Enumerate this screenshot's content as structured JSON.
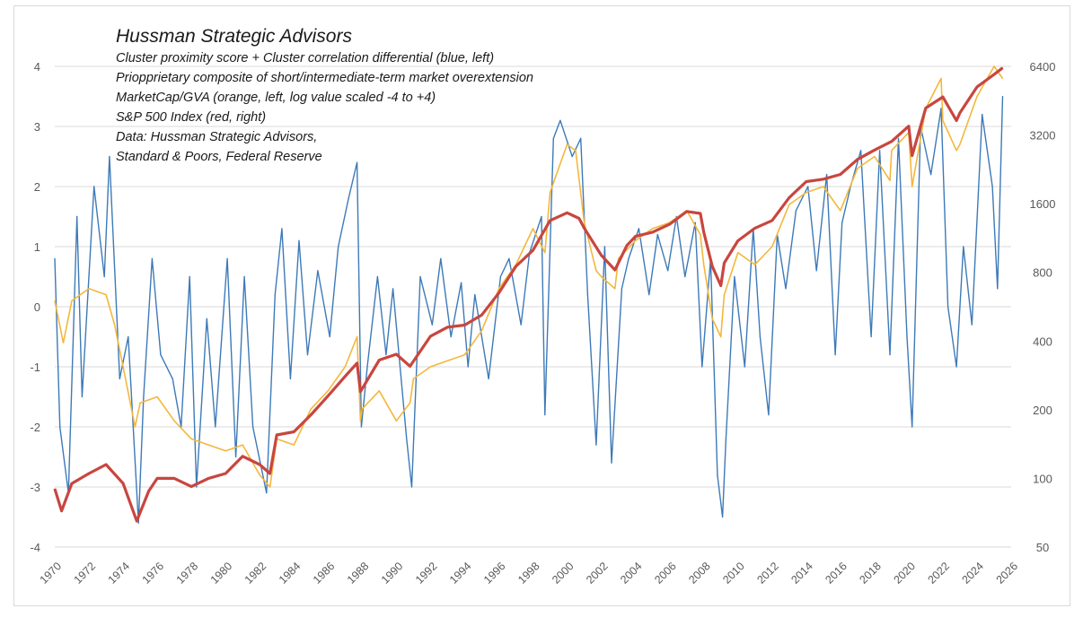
{
  "colors": {
    "cluster": "#3d7ab8",
    "marketcap": "#f4b73c",
    "sp500": "#c8463f",
    "grid": "#d9d9d9",
    "tick_text": "#595959"
  },
  "annotations": {
    "title": "Hussman Strategic Advisors",
    "lines": [
      "Cluster proximity score + Cluster correlation differential (blue, left)",
      "Priopprietary composite of short/intermediate-term  market overextension",
      "MarketCap/GVA (orange, left, log value scaled -4 to +4)",
      "S&P 500 Index (red, right)",
      "Data: Hussman Strategic Advisors,",
      "Standard & Poors, Federal Reserve"
    ]
  },
  "chart_data": {
    "type": "line",
    "title": "Hussman Strategic Advisors",
    "grid": "horizontal",
    "xlim": [
      1970,
      2026
    ],
    "x_ticks": [
      "1970",
      "1972",
      "1974",
      "1976",
      "1978",
      "1980",
      "1982",
      "1984",
      "1986",
      "1988",
      "1990",
      "1992",
      "1994",
      "1996",
      "1998",
      "2000",
      "2002",
      "2004",
      "2006",
      "2008",
      "2010",
      "2012",
      "2014",
      "2016",
      "2018",
      "2020",
      "2022",
      "2024",
      "2026"
    ],
    "y_left": {
      "range": [
        -4,
        4
      ],
      "ticks": [
        "4",
        "3",
        "2",
        "1",
        "0",
        "-1",
        "-2",
        "-3",
        "-4"
      ]
    },
    "y_right": {
      "scale": "log",
      "range": [
        50,
        6400
      ],
      "ticks": [
        "6400",
        "3200",
        "1600",
        "800",
        "400",
        "200",
        "100",
        "50"
      ]
    },
    "series": [
      {
        "key": "marketcap",
        "axis": "left",
        "x": [
          1970,
          1970.5,
          1971,
          1972,
          1973,
          1973.5,
          1974,
          1974.7,
          1975,
          1976,
          1977,
          1978,
          1979,
          1980,
          1981,
          1982,
          1982.6,
          1983,
          1984,
          1985,
          1986,
          1987,
          1987.7,
          1987.9,
          1988,
          1989,
          1990,
          1990.8,
          1991,
          1992,
          1993,
          1994,
          1995,
          1996,
          1997,
          1998,
          1998.7,
          1999,
          2000,
          2000.5,
          2001,
          2001.7,
          2002,
          2002.8,
          2003,
          2004,
          2005,
          2006,
          2007,
          2007.8,
          2008,
          2008.5,
          2009,
          2009.2,
          2010,
          2011,
          2012,
          2013,
          2014,
          2015,
          2016,
          2017,
          2018,
          2018.9,
          2019,
          2020,
          2020.2,
          2021,
          2021.9,
          2022,
          2022.8,
          2023,
          2024,
          2025,
          2025.5
        ],
        "y": [
          0.1,
          -0.6,
          0.1,
          0.3,
          0.2,
          -0.3,
          -1.0,
          -2.0,
          -1.6,
          -1.5,
          -1.9,
          -2.2,
          -2.3,
          -2.4,
          -2.3,
          -2.8,
          -3.0,
          -2.2,
          -2.3,
          -1.7,
          -1.4,
          -1.0,
          -0.5,
          -1.9,
          -1.7,
          -1.4,
          -1.9,
          -1.6,
          -1.2,
          -1.0,
          -0.9,
          -0.8,
          -0.4,
          0.3,
          0.7,
          1.3,
          0.9,
          1.9,
          2.7,
          2.6,
          1.4,
          0.6,
          0.5,
          0.3,
          0.8,
          1.1,
          1.3,
          1.4,
          1.6,
          1.2,
          0.7,
          -0.2,
          -0.5,
          0.2,
          0.9,
          0.7,
          1.0,
          1.7,
          1.9,
          2.0,
          1.6,
          2.3,
          2.5,
          2.1,
          2.6,
          2.9,
          2.0,
          3.3,
          3.8,
          3.1,
          2.6,
          2.7,
          3.5,
          4.0,
          3.8
        ]
      },
      {
        "key": "sp500",
        "axis": "right",
        "x": [
          1970,
          1970.4,
          1971,
          1972,
          1973,
          1974,
          1974.8,
          1975.5,
          1976,
          1977,
          1978,
          1979,
          1980,
          1981,
          1982,
          1982.6,
          1983,
          1984,
          1985,
          1986,
          1987,
          1987.7,
          1987.9,
          1989,
          1990,
          1990.8,
          1992,
          1993,
          1994,
          1995,
          1996,
          1997,
          1998,
          1999,
          2000,
          2000.7,
          2001,
          2002,
          2002.8,
          2003.5,
          2004,
          2005,
          2006,
          2007,
          2007.8,
          2008,
          2008.5,
          2009,
          2009.2,
          2010,
          2011,
          2012,
          2013,
          2014,
          2015,
          2016,
          2017,
          2018,
          2019,
          2020,
          2020.2,
          2021,
          2022,
          2022.8,
          2023,
          2024,
          2025,
          2025.5
        ],
        "y": [
          90,
          72,
          95,
          105,
          115,
          95,
          65,
          88,
          100,
          100,
          92,
          100,
          105,
          125,
          115,
          105,
          155,
          160,
          190,
          230,
          280,
          320,
          240,
          330,
          350,
          310,
          420,
          460,
          470,
          520,
          650,
          850,
          1000,
          1350,
          1460,
          1380,
          1250,
          950,
          820,
          1050,
          1150,
          1200,
          1300,
          1480,
          1450,
          1200,
          850,
          700,
          880,
          1100,
          1250,
          1350,
          1700,
          2000,
          2050,
          2150,
          2500,
          2750,
          3000,
          3500,
          2600,
          4200,
          4700,
          3700,
          4000,
          5200,
          5900,
          6300
        ]
      },
      {
        "key": "cluster",
        "axis": "left",
        "x": [
          1970,
          1970.3,
          1970.8,
          1971.3,
          1971.6,
          1972.3,
          1972.9,
          1973.2,
          1973.8,
          1974.3,
          1974.9,
          1975.2,
          1975.7,
          1976.2,
          1976.9,
          1977.4,
          1977.9,
          1978.3,
          1978.9,
          1979.4,
          1980.1,
          1980.6,
          1981.1,
          1981.6,
          1982.4,
          1982.9,
          1983.3,
          1983.8,
          1984.3,
          1984.8,
          1985.4,
          1986.1,
          1986.6,
          1987.2,
          1987.7,
          1987.95,
          1988.3,
          1988.9,
          1989.4,
          1989.8,
          1990.6,
          1990.9,
          1991.4,
          1992.1,
          1992.6,
          1993.2,
          1993.8,
          1994.2,
          1994.6,
          1995.4,
          1996.1,
          1996.6,
          1997.3,
          1997.8,
          1998.5,
          1998.7,
          1999.2,
          1999.6,
          2000.3,
          2000.8,
          2001.2,
          2001.7,
          2002.2,
          2002.6,
          2003.2,
          2003.6,
          2004.2,
          2004.8,
          2005.3,
          2005.9,
          2006.4,
          2006.9,
          2007.5,
          2007.9,
          2008.4,
          2008.8,
          2009.1,
          2009.3,
          2009.8,
          2010.4,
          2010.9,
          2011.3,
          2011.8,
          2012.3,
          2012.8,
          2013.4,
          2014.1,
          2014.6,
          2015.2,
          2015.7,
          2016.1,
          2016.6,
          2017.2,
          2017.8,
          2018.3,
          2018.9,
          2019.4,
          2019.9,
          2020.2,
          2020.7,
          2021.3,
          2021.9,
          2022.3,
          2022.8,
          2023.2,
          2023.7,
          2024.3,
          2024.9,
          2025.2,
          2025.5
        ],
        "y": [
          0.8,
          -2.0,
          -3.1,
          1.5,
          -1.5,
          2.0,
          0.5,
          2.5,
          -1.2,
          -0.5,
          -3.6,
          -1.5,
          0.8,
          -0.8,
          -1.2,
          -2.0,
          0.5,
          -3.0,
          -0.2,
          -2.0,
          0.8,
          -2.5,
          0.5,
          -2.0,
          -3.1,
          0.2,
          1.3,
          -1.2,
          1.1,
          -0.8,
          0.6,
          -0.5,
          1.0,
          1.8,
          2.4,
          -2.0,
          -1.0,
          0.5,
          -0.8,
          0.3,
          -2.2,
          -3.0,
          0.5,
          -0.3,
          0.8,
          -0.5,
          0.4,
          -1.0,
          0.2,
          -1.2,
          0.5,
          0.8,
          -0.3,
          0.9,
          1.5,
          -1.8,
          2.8,
          3.1,
          2.5,
          2.8,
          0.2,
          -2.3,
          1.0,
          -2.6,
          0.3,
          0.8,
          1.3,
          0.2,
          1.2,
          0.6,
          1.5,
          0.5,
          1.4,
          -1.0,
          0.8,
          -2.8,
          -3.5,
          -2.2,
          0.5,
          -1.0,
          1.3,
          -0.5,
          -1.8,
          1.2,
          0.3,
          1.6,
          2.0,
          0.6,
          2.2,
          -0.8,
          1.4,
          2.0,
          2.6,
          -0.5,
          2.6,
          -0.8,
          2.8,
          -0.5,
          -2.0,
          3.0,
          2.2,
          3.3,
          0.0,
          -1.0,
          1.0,
          -0.3,
          3.2,
          2.0,
          0.3,
          3.5
        ]
      }
    ]
  }
}
